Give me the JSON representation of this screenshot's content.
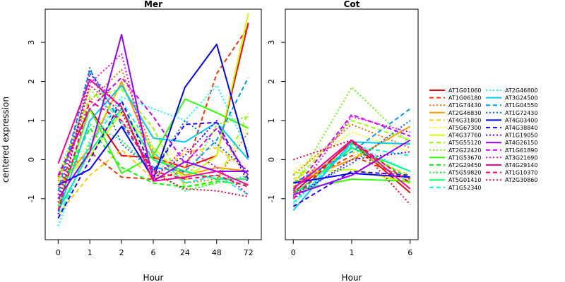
{
  "chart_data": {
    "type": "line",
    "ylabel": "centered expression",
    "legend_position": "right",
    "panels": [
      {
        "title": "Mer",
        "xlabel": "Hour",
        "categories": [
          "0",
          "1",
          "2",
          "6",
          "24",
          "48",
          "72"
        ],
        "ylim": [
          -2.05,
          3.85
        ],
        "yticks": [
          -1,
          0,
          1,
          2,
          3
        ]
      },
      {
        "title": "Cot",
        "xlabel": "Hour",
        "categories": [
          "0",
          "1",
          "6"
        ],
        "ylim": [
          -2.05,
          3.85
        ],
        "yticks": [
          -1,
          0,
          1,
          2,
          3
        ]
      }
    ],
    "series": [
      {
        "name": "AT1G01060",
        "color": "#ff0000",
        "dash": "solid",
        "mer": [
          -0.45,
          1.3,
          0.1,
          0.05,
          -0.2,
          0.1,
          3.5
        ],
        "cot": [
          -0.85,
          0.45,
          -0.85
        ]
      },
      {
        "name": "AT1G06180",
        "color": "#ff3300",
        "dash": "dashed",
        "mer": [
          -0.4,
          0.2,
          -0.45,
          -0.5,
          -0.3,
          2.2,
          3.4
        ],
        "cot": [
          -0.7,
          0.1,
          -0.5
        ]
      },
      {
        "name": "AT1G74430",
        "color": "#ff6600",
        "dash": "dotted",
        "mer": [
          -0.55,
          1.5,
          2.3,
          0.2,
          -0.6,
          -0.5,
          0.7
        ],
        "cot": [
          -0.4,
          0.9,
          0.3
        ]
      },
      {
        "name": "AT2G46830",
        "color": "#ff9900",
        "dash": "solid",
        "mer": [
          -0.7,
          0.3,
          2.0,
          0.1,
          -0.4,
          -0.2,
          -0.3
        ],
        "cot": [
          -0.6,
          0.0,
          0.85
        ]
      },
      {
        "name": "AT4G31800",
        "color": "#ffcc00",
        "dash": "dashed",
        "mer": [
          -1.4,
          -0.4,
          0.25,
          -0.5,
          0.2,
          0.3,
          -0.3
        ],
        "cot": [
          -0.5,
          0.2,
          -0.4
        ]
      },
      {
        "name": "AT5G67300",
        "color": "#ffff00",
        "dash": "dotted",
        "mer": [
          -0.9,
          0.5,
          1.9,
          0.6,
          -0.2,
          -0.5,
          0.9
        ],
        "cot": [
          -0.3,
          0.7,
          0.2
        ]
      },
      {
        "name": "AT4G37760",
        "color": "#ccff00",
        "dash": "solid",
        "mer": [
          -0.6,
          0.1,
          1.2,
          0.3,
          -0.5,
          0.1,
          3.75
        ],
        "cot": [
          -0.35,
          -0.25,
          -0.6
        ]
      },
      {
        "name": "AT5G55120",
        "color": "#99ff00",
        "dash": "dashed",
        "mer": [
          -0.5,
          1.6,
          1.8,
          0.8,
          -0.7,
          -0.6,
          1.2
        ],
        "cot": [
          -0.6,
          1.0,
          0.5
        ]
      },
      {
        "name": "AT2G22420",
        "color": "#66ff00",
        "dash": "dotted",
        "mer": [
          -0.4,
          1.8,
          1.0,
          0.0,
          -0.6,
          0.9,
          1.1
        ],
        "cot": [
          -0.7,
          1.85,
          0.4
        ]
      },
      {
        "name": "AT1G53670",
        "color": "#33ff00",
        "dash": "solid",
        "mer": [
          -1.2,
          1.3,
          -0.35,
          0.1,
          1.55,
          1.2,
          0.8
        ],
        "cot": [
          -0.8,
          -0.5,
          -0.55
        ]
      },
      {
        "name": "AT2G29450",
        "color": "#00ff00",
        "dash": "dashed",
        "mer": [
          -0.8,
          0.8,
          -0.2,
          -0.6,
          -0.7,
          -0.55,
          -0.65
        ],
        "cot": [
          -1.0,
          0.4,
          -0.5
        ]
      },
      {
        "name": "AT5G59820",
        "color": "#00ff33",
        "dash": "dotted",
        "mer": [
          -1.0,
          0.9,
          0.5,
          -0.3,
          -0.8,
          -0.6,
          -0.4
        ],
        "cot": [
          -0.9,
          0.3,
          -0.6
        ]
      },
      {
        "name": "AT5G01410",
        "color": "#00ff66",
        "dash": "solid",
        "mer": [
          -1.3,
          0.2,
          1.3,
          0.0,
          -0.3,
          -0.5,
          -0.5
        ],
        "cot": [
          -0.9,
          0.3,
          -0.3
        ]
      },
      {
        "name": "AT1G52340",
        "color": "#00ffcc",
        "dash": "dashed",
        "mer": [
          -1.5,
          0.4,
          1.5,
          0.2,
          -0.6,
          -0.4,
          -0.9
        ],
        "cot": [
          -1.1,
          0.35,
          0.1
        ]
      },
      {
        "name": "AT2G46800",
        "color": "#00ffff",
        "dash": "dotted",
        "mer": [
          -1.7,
          0.5,
          1.6,
          1.3,
          1.0,
          1.9,
          0.2
        ],
        "cot": [
          -1.15,
          0.4,
          -0.3
        ]
      },
      {
        "name": "AT3G24500",
        "color": "#00ccff",
        "dash": "solid",
        "mer": [
          -1.35,
          1.0,
          1.9,
          0.55,
          0.45,
          0.95,
          0.0
        ],
        "cot": [
          -1.3,
          0.45,
          0.4
        ]
      },
      {
        "name": "AT1G04550",
        "color": "#0099ff",
        "dash": "dashed",
        "mer": [
          -0.8,
          2.3,
          0.9,
          -0.2,
          -0.3,
          0.5,
          2.1
        ],
        "cot": [
          -0.6,
          0.2,
          1.3
        ]
      },
      {
        "name": "AT1G72430",
        "color": "#0066ff",
        "dash": "dotted",
        "mer": [
          -1.0,
          2.35,
          0.4,
          -0.3,
          1.0,
          0.4,
          -0.3
        ],
        "cot": [
          -0.9,
          -0.1,
          1.0
        ]
      },
      {
        "name": "AT4G03400",
        "color": "#0000ff",
        "dash": "solid",
        "mer": [
          -0.65,
          -0.25,
          0.85,
          -0.5,
          1.85,
          2.95,
          0.05
        ],
        "cot": [
          -0.6,
          -0.35,
          -0.45
        ]
      },
      {
        "name": "AT4G38840",
        "color": "#3300ff",
        "dash": "dashed",
        "mer": [
          -1.5,
          0.0,
          1.5,
          -0.3,
          0.9,
          0.95,
          -0.5
        ],
        "cot": [
          -1.2,
          -0.3,
          -0.4
        ]
      },
      {
        "name": "AT1G19050",
        "color": "#6600ff",
        "dash": "dotted",
        "mer": [
          -1.4,
          2.2,
          1.3,
          -0.4,
          0.1,
          1.0,
          -0.6
        ],
        "cot": [
          -1.0,
          0.0,
          0.2
        ]
      },
      {
        "name": "AT4G26150",
        "color": "#9900ff",
        "dash": "solid",
        "mer": [
          -1.0,
          0.2,
          3.2,
          -0.55,
          -0.05,
          -0.3,
          -0.3
        ],
        "cot": [
          -0.9,
          -0.4,
          0.5
        ]
      },
      {
        "name": "AT1G61890",
        "color": "#cc00ff",
        "dash": "dashed",
        "mer": [
          -0.4,
          1.3,
          2.1,
          1.1,
          -0.1,
          0.8,
          -0.4
        ],
        "cot": [
          -0.8,
          1.15,
          0.6
        ]
      },
      {
        "name": "AT3G21690",
        "color": "#ff00ff",
        "dash": "dotted",
        "mer": [
          -0.9,
          1.95,
          2.7,
          -0.5,
          0.3,
          -0.2,
          -0.9
        ],
        "cot": [
          -0.95,
          1.1,
          0.7
        ]
      },
      {
        "name": "AT4G29140",
        "color": "#ff0099",
        "dash": "solid",
        "mer": [
          -0.1,
          2.05,
          1.35,
          -0.55,
          -0.45,
          -0.3,
          -0.65
        ],
        "cot": [
          -0.75,
          0.5,
          -0.75
        ]
      },
      {
        "name": "AT1G10370",
        "color": "#ff0066",
        "dash": "dashed",
        "mer": [
          -1.3,
          1.5,
          1.0,
          -0.3,
          -0.5,
          -0.4,
          -0.7
        ],
        "cot": [
          -1.0,
          0.5,
          -0.6
        ]
      },
      {
        "name": "AT2G30860",
        "color": "#ff0033",
        "dash": "dotted",
        "mer": [
          -1.1,
          1.9,
          1.2,
          -0.35,
          -0.75,
          -0.8,
          -0.95
        ],
        "cot": [
          0.0,
          0.5,
          -1.15
        ]
      }
    ]
  }
}
